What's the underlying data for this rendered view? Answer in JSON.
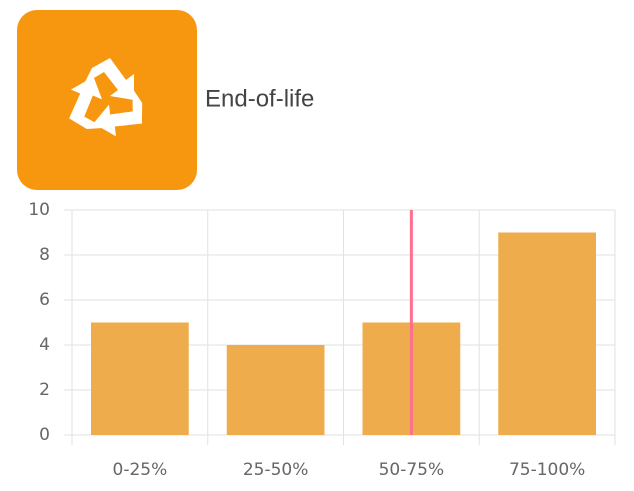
{
  "label": "End-of-life",
  "chart_data": {
    "type": "bar",
    "categories": [
      "0-25%",
      "25-50%",
      "50-75%",
      "75-100%"
    ],
    "values": [
      5,
      4,
      5,
      9
    ],
    "color": "#eeac4c",
    "ylim": [
      0,
      10
    ],
    "yticks": [
      0,
      2,
      4,
      6,
      8,
      10
    ],
    "grid": true,
    "marker": {
      "category": 2,
      "color": "#ff6f8e"
    }
  }
}
